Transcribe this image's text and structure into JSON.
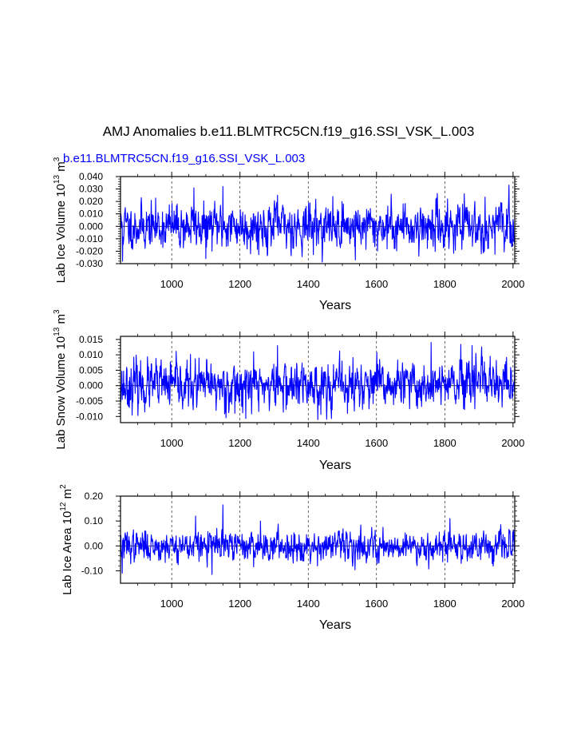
{
  "title": "AMJ Anomalies b.e11.BLMTRC5CN.f19_g16.SSI_VSK_L.003",
  "subtitle": "b.e11.BLMTRC5CN.f19_g16.SSI_VSK_L.003",
  "colors": {
    "series": "#0000ff",
    "axes": "#000000",
    "grid": "#000000"
  },
  "chart_data": [
    {
      "type": "line",
      "name": "lab-ice-volume",
      "ylabel": "Lab Ice Volume 10^13 m^3",
      "ylabel_main": "Lab Ice Volume 10",
      "ylabel_exp1": "13",
      "ylabel_unit": " m",
      "ylabel_exp2": "3",
      "xlabel": "Years",
      "xlim": [
        850,
        2005
      ],
      "ylim": [
        -0.03,
        0.04
      ],
      "x_ticks": [
        1000,
        1200,
        1400,
        1600,
        1800,
        2000
      ],
      "x_tick_labels": [
        "1000",
        "1200",
        "1400",
        "1600",
        "1800",
        "2000"
      ],
      "y_ticks": [
        -0.03,
        -0.02,
        -0.01,
        0.0,
        0.01,
        0.02,
        0.03,
        0.04
      ],
      "y_tick_labels": [
        "-0.030",
        "-0.020",
        "-0.010",
        "0.000",
        "0.010",
        "0.020",
        "0.030",
        "0.040"
      ],
      "vertical_gridlines": [
        1000,
        1200,
        1400,
        1600,
        1800,
        2000
      ],
      "series": {
        "start_year": 850,
        "end_year": 2005,
        "amplitude": 0.0085,
        "seed": 11,
        "spikes": [
          [
            1065,
            0.031
          ],
          [
            1150,
            0.032
          ],
          [
            1100,
            -0.026
          ],
          [
            856,
            -0.028
          ],
          [
            1538,
            -0.027
          ],
          [
            1808,
            0.022
          ],
          [
            1310,
            0.025
          ]
        ]
      }
    },
    {
      "type": "line",
      "name": "lab-snow-volume",
      "ylabel": "Lab Snow Volume 10^13 m^3",
      "ylabel_main": "Lab Snow Volume 10",
      "ylabel_exp1": "13",
      "ylabel_unit": " m",
      "ylabel_exp2": "3",
      "xlabel": "Years",
      "xlim": [
        850,
        2005
      ],
      "ylim": [
        -0.012,
        0.016
      ],
      "x_ticks": [
        1000,
        1200,
        1400,
        1600,
        1800,
        2000
      ],
      "x_tick_labels": [
        "1000",
        "1200",
        "1400",
        "1600",
        "1800",
        "2000"
      ],
      "y_ticks": [
        -0.01,
        -0.005,
        0.0,
        0.005,
        0.01,
        0.015
      ],
      "y_tick_labels": [
        "-0.010",
        "-0.005",
        "0.000",
        "0.005",
        "0.010",
        "0.015"
      ],
      "vertical_gridlines": [
        1000,
        1200,
        1400,
        1600,
        1800,
        2000
      ],
      "series": {
        "start_year": 850,
        "end_year": 2005,
        "amplitude": 0.0036,
        "seed": 23,
        "spikes": [
          [
            1310,
            0.013
          ],
          [
            1760,
            0.014
          ],
          [
            1880,
            0.013
          ],
          [
            1515,
            -0.009
          ],
          [
            1185,
            -0.009
          ],
          [
            1240,
            0.011
          ]
        ]
      }
    },
    {
      "type": "line",
      "name": "lab-ice-area",
      "ylabel": "Lab Ice Area 10^12 m^2",
      "ylabel_main": "Lab Ice Area 10",
      "ylabel_exp1": "12",
      "ylabel_unit": " m",
      "ylabel_exp2": "2",
      "xlabel": "Years",
      "xlim": [
        850,
        2005
      ],
      "ylim": [
        -0.15,
        0.2
      ],
      "x_ticks": [
        1000,
        1200,
        1400,
        1600,
        1800,
        2000
      ],
      "x_tick_labels": [
        "1000",
        "1200",
        "1400",
        "1600",
        "1800",
        "2000"
      ],
      "y_ticks": [
        -0.1,
        0.0,
        0.1,
        0.2
      ],
      "y_tick_labels": [
        "-0.10",
        "0.00",
        "0.10",
        "0.20"
      ],
      "vertical_gridlines": [
        1000,
        1200,
        1400,
        1600,
        1800,
        2000
      ],
      "series": {
        "start_year": 850,
        "end_year": 2005,
        "amplitude": 0.028,
        "seed": 37,
        "spikes": [
          [
            1150,
            0.165
          ],
          [
            1070,
            0.12
          ],
          [
            1118,
            -0.115
          ],
          [
            855,
            -0.11
          ],
          [
            1815,
            0.11
          ],
          [
            1260,
            0.1
          ]
        ]
      }
    }
  ]
}
